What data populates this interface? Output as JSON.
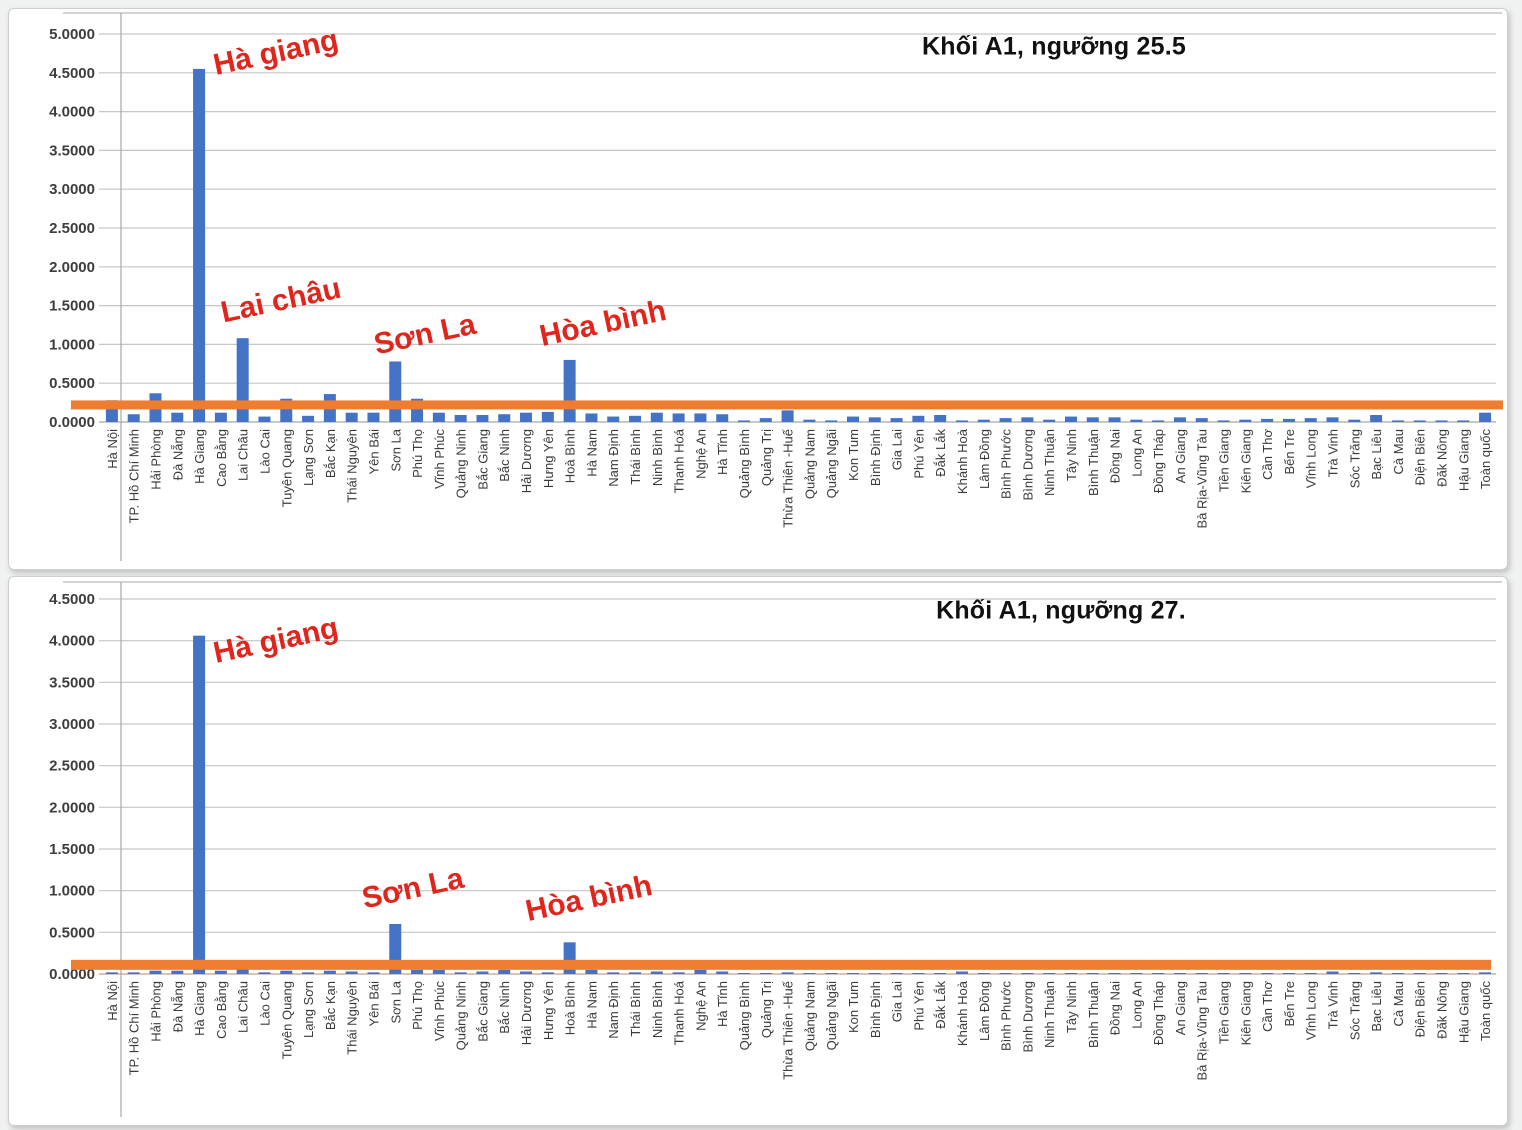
{
  "colors": {
    "bar": "#4472C4",
    "threshold": "#ED7D31",
    "annotation": "#E0251C",
    "grid": "#c6c6c6",
    "axis": "#a8a8a8",
    "title": "#111111"
  },
  "chart_data": [
    {
      "type": "bar",
      "title": "Khối A1, ngưỡng 25.5",
      "xlabel": "",
      "ylabel": "",
      "ylim": [
        0,
        5.0
      ],
      "ytick_step": 0.5,
      "ytick_decimals": 4,
      "grid": true,
      "legend": "none",
      "threshold_line": {
        "value": 0.22,
        "color": "#ED7D31"
      },
      "categories": [
        "Hà Nội",
        "TP. Hồ Chí Minh",
        "Hải Phòng",
        "Đà Nẵng",
        "Hà Giang",
        "Cao Bằng",
        "Lai Châu",
        "Lào Cai",
        "Tuyên Quang",
        "Lạng Sơn",
        "Bắc Kạn",
        "Thái Nguyên",
        "Yên Bái",
        "Sơn La",
        "Phú Thọ",
        "Vĩnh Phúc",
        "Quảng Ninh",
        "Bắc Giang",
        "Bắc Ninh",
        "Hải Dương",
        "Hưng Yên",
        "Hoà Bình",
        "Hà Nam",
        "Nam Định",
        "Thái Bình",
        "Ninh Bình",
        "Thanh Hoá",
        "Nghệ An",
        "Hà Tĩnh",
        "Quảng Bình",
        "Quảng Trị",
        "Thừa Thiên -Huế",
        "Quảng Nam",
        "Quảng Ngãi",
        "Kon Tum",
        "Bình Định",
        "Gia Lai",
        "Phú Yên",
        "Đắk Lắk",
        "Khánh Hoà",
        "Lâm Đồng",
        "Bình Phước",
        "Bình Dương",
        "Ninh Thuận",
        "Tây Ninh",
        "Bình Thuận",
        "Đồng Nai",
        "Long An",
        "Đồng Tháp",
        "An Giang",
        "Bà Rịa-Vũng Tàu",
        "Tiền Giang",
        "Kiên Giang",
        "Cần Thơ",
        "Bến Tre",
        "Vĩnh Long",
        "Trà Vinh",
        "Sóc Trăng",
        "Bạc Liêu",
        "Cà Mau",
        "Điện Biên",
        "Đăk Nông",
        "Hậu Giang",
        "Toàn quốc"
      ],
      "values": [
        0.28,
        0.1,
        0.37,
        0.12,
        4.55,
        0.12,
        1.08,
        0.07,
        0.3,
        0.08,
        0.36,
        0.12,
        0.12,
        0.78,
        0.3,
        0.12,
        0.09,
        0.09,
        0.1,
        0.12,
        0.13,
        0.8,
        0.11,
        0.07,
        0.08,
        0.12,
        0.11,
        0.11,
        0.1,
        0.02,
        0.05,
        0.15,
        0.03,
        0.02,
        0.07,
        0.06,
        0.05,
        0.08,
        0.09,
        0.02,
        0.03,
        0.05,
        0.06,
        0.03,
        0.07,
        0.06,
        0.06,
        0.03,
        0.02,
        0.06,
        0.05,
        0.02,
        0.03,
        0.04,
        0.04,
        0.05,
        0.06,
        0.03,
        0.09,
        0.02,
        0.02,
        0.02,
        0.02,
        0.12
      ],
      "annotations": [
        {
          "text": "Hà giang",
          "x": 267,
          "y": 44
        },
        {
          "text": "Lai châu",
          "x": 272,
          "y": 292
        },
        {
          "text": "Sơn La",
          "x": 416,
          "y": 326
        },
        {
          "text": "Hòa bình",
          "x": 594,
          "y": 315
        }
      ]
    },
    {
      "type": "bar",
      "title": "Khối A1, ngưỡng 27.",
      "xlabel": "",
      "ylabel": "",
      "ylim": [
        0,
        4.5
      ],
      "ytick_step": 0.5,
      "ytick_decimals": 4,
      "grid": true,
      "legend": "none",
      "threshold_line": {
        "value": 0.11,
        "color": "#ED7D31"
      },
      "categories": [
        "Hà Nội",
        "TP. Hồ Chí Minh",
        "Hải Phòng",
        "Đà Nẵng",
        "Hà Giang",
        "Cao Bằng",
        "Lai Châu",
        "Lào Cai",
        "Tuyên Quang",
        "Lạng Sơn",
        "Bắc Kạn",
        "Thái Nguyên",
        "Yên Bái",
        "Sơn La",
        "Phú Thọ",
        "Vĩnh Phúc",
        "Quảng Ninh",
        "Bắc Giang",
        "Bắc Ninh",
        "Hải Dương",
        "Hưng Yên",
        "Hoà Bình",
        "Hà Nam",
        "Nam Định",
        "Thái Bình",
        "Ninh Bình",
        "Thanh Hoá",
        "Nghệ An",
        "Hà Tĩnh",
        "Quảng Bình",
        "Quảng Trị",
        "Thừa Thiên -Huế",
        "Quảng Nam",
        "Quảng Ngãi",
        "Kon Tum",
        "Bình Định",
        "Gia Lai",
        "Phú Yên",
        "Đắk Lắk",
        "Khánh Hoà",
        "Lâm Đồng",
        "Bình Phước",
        "Bình Dương",
        "Ninh Thuận",
        "Tây Ninh",
        "Bình Thuận",
        "Đồng Nai",
        "Long An",
        "Đồng Tháp",
        "An Giang",
        "Bà Rịa-Vũng Tàu",
        "Tiền Giang",
        "Kiên Giang",
        "Cần Thơ",
        "Bến Tre",
        "Vĩnh Long",
        "Trà Vinh",
        "Sóc Trăng",
        "Bạc Liêu",
        "Cà Mau",
        "Điện Biên",
        "Đăk Nông",
        "Hậu Giang",
        "Toàn quốc"
      ],
      "values": [
        0.02,
        0.02,
        0.04,
        0.04,
        4.06,
        0.04,
        0.15,
        0.02,
        0.04,
        0.02,
        0.04,
        0.03,
        0.02,
        0.6,
        0.05,
        0.05,
        0.02,
        0.03,
        0.05,
        0.03,
        0.02,
        0.38,
        0.05,
        0.02,
        0.02,
        0.03,
        0.02,
        0.05,
        0.03,
        0.01,
        0.01,
        0.02,
        0.01,
        0.01,
        0.01,
        0.01,
        0.01,
        0.01,
        0.01,
        0.03,
        0.01,
        0.01,
        0.01,
        0.01,
        0.01,
        0.01,
        0.01,
        0.01,
        0.01,
        0.01,
        0.01,
        0.01,
        0.01,
        0.01,
        0.01,
        0.01,
        0.03,
        0.01,
        0.02,
        0.01,
        0.01,
        0.01,
        0.01,
        0.02
      ],
      "annotations": [
        {
          "text": "Hà giang",
          "x": 267,
          "y": 64
        },
        {
          "text": "Sơn La",
          "x": 404,
          "y": 312
        },
        {
          "text": "Hòa bình",
          "x": 580,
          "y": 322
        }
      ]
    }
  ]
}
